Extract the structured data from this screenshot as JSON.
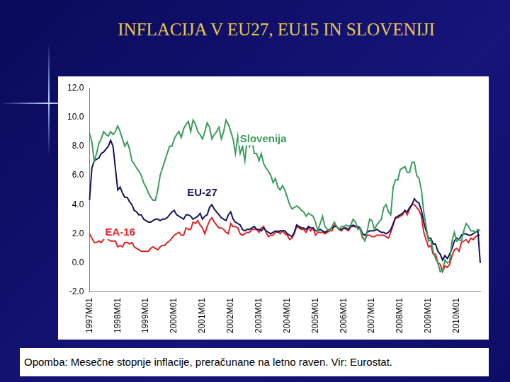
{
  "chart_data": {
    "type": "line",
    "title": "INFLACIJA V EU27, EU15 IN SLOVENIJI",
    "annotations": [
      "Opomba: Mesečne stopnje inflacije, preračunane na letno raven. Vir: Eurostat."
    ],
    "grid": false,
    "ylim": [
      -2,
      12
    ],
    "yticks": [
      {
        "value": -2,
        "label": "-2.0"
      },
      {
        "value": 0,
        "label": "0.0"
      },
      {
        "value": 2,
        "label": "2.0"
      },
      {
        "value": 4,
        "label": "4.0"
      },
      {
        "value": 6,
        "label": "6.0"
      },
      {
        "value": 8,
        "label": "8.0"
      },
      {
        "value": 10,
        "label": "10.0"
      },
      {
        "value": 12,
        "label": "12.0"
      }
    ],
    "categories": [
      "1997M01",
      null,
      null,
      null,
      null,
      null,
      null,
      null,
      null,
      null,
      null,
      null,
      "1998M01",
      null,
      null,
      null,
      null,
      null,
      null,
      null,
      null,
      null,
      null,
      null,
      "1999M01",
      null,
      null,
      null,
      null,
      null,
      null,
      null,
      null,
      null,
      null,
      null,
      "2000M01",
      null,
      null,
      null,
      null,
      null,
      null,
      null,
      null,
      null,
      null,
      null,
      "2001M01",
      null,
      null,
      null,
      null,
      null,
      null,
      null,
      null,
      null,
      null,
      null,
      "2002M01",
      null,
      null,
      null,
      null,
      null,
      null,
      null,
      null,
      null,
      null,
      null,
      "2003M01",
      null,
      null,
      null,
      null,
      null,
      null,
      null,
      null,
      null,
      null,
      null,
      "2004M01",
      null,
      null,
      null,
      null,
      null,
      null,
      null,
      null,
      null,
      null,
      null,
      "2005M01",
      null,
      null,
      null,
      null,
      null,
      null,
      null,
      null,
      null,
      null,
      null,
      "2006M01",
      null,
      null,
      null,
      null,
      null,
      null,
      null,
      null,
      null,
      null,
      null,
      "2007M01",
      null,
      null,
      null,
      null,
      null,
      null,
      null,
      null,
      null,
      null,
      null,
      "2008M01",
      null,
      null,
      null,
      null,
      null,
      null,
      null,
      null,
      null,
      null,
      null,
      "2009M01",
      null,
      null,
      null,
      null,
      null,
      null,
      null,
      null,
      null,
      null,
      null,
      "2010M01",
      null,
      null,
      null,
      null,
      null,
      null,
      null,
      null,
      null,
      null
    ],
    "series": [
      {
        "name": "Slovenija",
        "color": "#3c9c5c",
        "values": [
          8.9,
          8.3,
          7.0,
          7.5,
          8.2,
          8.5,
          9.0,
          8.8,
          8.7,
          9.0,
          8.8,
          9.0,
          9.4,
          9.0,
          8.5,
          8.0,
          8.3,
          7.8,
          7.0,
          6.8,
          6.5,
          6.3,
          6.0,
          5.5,
          5.2,
          4.8,
          4.5,
          4.3,
          4.3,
          5.0,
          6.0,
          6.5,
          7.0,
          7.5,
          8.0,
          8.0,
          8.5,
          8.8,
          9.0,
          8.6,
          9.2,
          9.5,
          9.7,
          9.0,
          9.8,
          9.5,
          9.0,
          8.8,
          8.5,
          9.0,
          9.6,
          9.3,
          8.5,
          8.8,
          9.0,
          9.3,
          8.5,
          9.0,
          9.8,
          9.5,
          9.0,
          8.5,
          7.5,
          8.7,
          7.5,
          8.0,
          7.0,
          8.5,
          8.0,
          8.5,
          7.5,
          7.5,
          7.0,
          7.5,
          6.8,
          6.5,
          6.3,
          6.0,
          5.5,
          5.8,
          5.2,
          5.0,
          5.3,
          5.0,
          4.5,
          4.0,
          3.7,
          3.8,
          3.9,
          3.8,
          3.6,
          3.5,
          3.2,
          3.4,
          3.3,
          3.2,
          2.8,
          2.2,
          2.7,
          3.2,
          2.5,
          2.3,
          2.2,
          2.5,
          2.8,
          2.5,
          2.3,
          2.5,
          2.5,
          2.6,
          2.5,
          2.6,
          3.0,
          2.8,
          2.3,
          2.4,
          1.8,
          1.5,
          2.2,
          3.0,
          2.9,
          2.3,
          2.6,
          2.8,
          3.0,
          3.8,
          4.0,
          3.5,
          3.3,
          5.2,
          5.7,
          5.7,
          6.4,
          6.5,
          6.6,
          6.2,
          6.2,
          6.9,
          6.9,
          6.0,
          5.8,
          5.0,
          3.5,
          2.5,
          1.5,
          1.6,
          0.8,
          0.3,
          0.0,
          -0.6,
          -0.5,
          0.2,
          0.0,
          0.1,
          1.5,
          2.1,
          1.5,
          1.6,
          1.5,
          2.2,
          2.7,
          2.5,
          2.2,
          2.2,
          2.1,
          2.3,
          2.2
        ]
      },
      {
        "name": "EU-27",
        "color": "#14145e",
        "values": [
          4.3,
          6.5,
          7.0,
          7.1,
          7.2,
          7.5,
          7.6,
          7.8,
          8.0,
          8.4,
          8.0,
          6.5,
          5.0,
          5.2,
          4.8,
          4.5,
          4.5,
          4.2,
          4.0,
          3.6,
          3.5,
          3.3,
          3.3,
          3.0,
          2.9,
          2.8,
          2.8,
          2.9,
          3.0,
          3.0,
          2.9,
          3.0,
          3.0,
          3.1,
          3.3,
          3.5,
          3.6,
          3.3,
          3.2,
          3.1,
          3.0,
          3.3,
          3.3,
          3.2,
          3.0,
          3.1,
          3.2,
          3.4,
          3.0,
          3.2,
          3.3,
          3.8,
          4.0,
          3.7,
          3.5,
          3.3,
          3.1,
          3.0,
          2.9,
          3.3,
          3.5,
          3.0,
          2.8,
          2.7,
          2.6,
          2.3,
          2.2,
          2.3,
          2.3,
          2.4,
          2.5,
          2.3,
          2.3,
          2.2,
          2.4,
          2.2,
          2.1,
          2.0,
          2.1,
          2.2,
          2.1,
          2.2,
          2.2,
          2.2,
          2.0,
          1.9,
          1.8,
          2.1,
          2.6,
          2.5,
          2.4,
          2.4,
          2.3,
          2.5,
          2.4,
          2.4,
          2.2,
          2.2,
          2.3,
          2.2,
          2.1,
          2.2,
          2.3,
          2.4,
          2.5,
          2.5,
          2.3,
          2.3,
          2.4,
          2.4,
          2.3,
          2.5,
          2.6,
          2.5,
          2.5,
          2.4,
          2.0,
          1.9,
          2.1,
          2.2,
          2.2,
          2.2,
          2.3,
          2.2,
          2.1,
          2.1,
          2.0,
          2.1,
          2.3,
          2.7,
          3.1,
          3.2,
          3.3,
          3.4,
          3.6,
          3.5,
          3.8,
          4.0,
          4.4,
          4.2,
          4.1,
          3.6,
          2.8,
          2.2,
          1.7,
          1.7,
          1.3,
          1.3,
          0.8,
          0.6,
          0.2,
          0.5,
          0.3,
          0.6,
          1.0,
          1.5,
          1.7,
          1.6,
          1.9,
          2.0,
          2.0,
          1.9,
          1.9,
          2.0,
          2.1,
          2.2,
          0.0
        ]
      },
      {
        "name": "EA-16",
        "color": "#e02424",
        "values": [
          2.0,
          1.7,
          1.4,
          1.4,
          1.5,
          1.4,
          1.6,
          1.8,
          1.6,
          1.5,
          1.5,
          1.5,
          1.1,
          1.2,
          1.1,
          1.4,
          1.4,
          1.3,
          1.4,
          1.1,
          1.0,
          0.9,
          0.8,
          0.8,
          0.8,
          0.8,
          1.0,
          1.1,
          1.0,
          0.9,
          1.1,
          1.2,
          1.2,
          1.4,
          1.5,
          1.7,
          1.9,
          2.0,
          2.1,
          1.9,
          1.9,
          2.4,
          2.3,
          2.3,
          2.8,
          2.7,
          2.9,
          2.6,
          2.4,
          2.0,
          2.5,
          2.9,
          3.1,
          2.8,
          2.6,
          2.4,
          2.4,
          2.3,
          2.1,
          2.0,
          2.7,
          2.5,
          2.5,
          2.4,
          2.0,
          1.9,
          2.0,
          2.1,
          2.1,
          2.3,
          2.3,
          2.3,
          2.1,
          2.4,
          2.5,
          2.1,
          1.8,
          1.9,
          1.9,
          2.1,
          2.2,
          2.0,
          2.2,
          2.0,
          1.9,
          1.6,
          1.7,
          2.0,
          2.5,
          2.4,
          2.3,
          2.3,
          2.1,
          2.4,
          2.2,
          2.4,
          1.9,
          2.1,
          2.1,
          2.1,
          2.0,
          2.1,
          2.2,
          2.2,
          2.6,
          2.5,
          2.3,
          2.2,
          2.4,
          2.3,
          2.2,
          2.5,
          2.5,
          2.5,
          2.4,
          2.3,
          1.7,
          1.6,
          1.9,
          1.9,
          1.8,
          1.8,
          1.9,
          1.9,
          1.9,
          1.9,
          1.8,
          1.7,
          2.1,
          2.6,
          3.1,
          3.1,
          3.2,
          3.3,
          3.6,
          3.3,
          3.7,
          4.0,
          4.0,
          3.8,
          3.6,
          3.2,
          2.1,
          1.6,
          1.1,
          1.2,
          0.6,
          0.6,
          0.0,
          -0.1,
          -0.6,
          -0.2,
          -0.3,
          -0.1,
          0.5,
          0.9,
          1.0,
          0.8,
          1.4,
          1.5,
          1.6,
          1.4,
          1.7,
          1.6,
          1.8,
          1.9,
          1.9
        ]
      }
    ]
  }
}
